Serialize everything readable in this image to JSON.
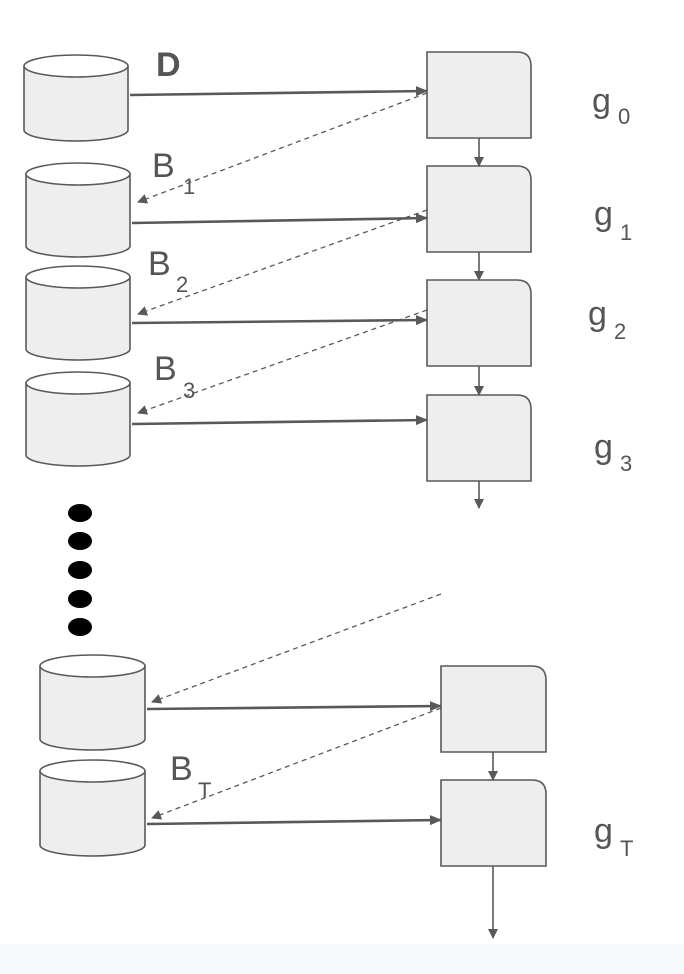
{
  "colors": {
    "stroke": "#595959",
    "fill": "#eeeeee",
    "dot": "#000000",
    "text": "#555555"
  },
  "dataset_label": "D",
  "batch_labels": [
    {
      "main": "B",
      "sub": "1"
    },
    {
      "main": "B",
      "sub": "2"
    },
    {
      "main": "B",
      "sub": "3"
    },
    {
      "main": "B",
      "sub": "T"
    }
  ],
  "model_labels": [
    {
      "main": "g",
      "sub": "0"
    },
    {
      "main": "g",
      "sub": "1"
    },
    {
      "main": "g",
      "sub": "2"
    },
    {
      "main": "g",
      "sub": "3"
    },
    {
      "main": "g",
      "sub": "T"
    }
  ]
}
